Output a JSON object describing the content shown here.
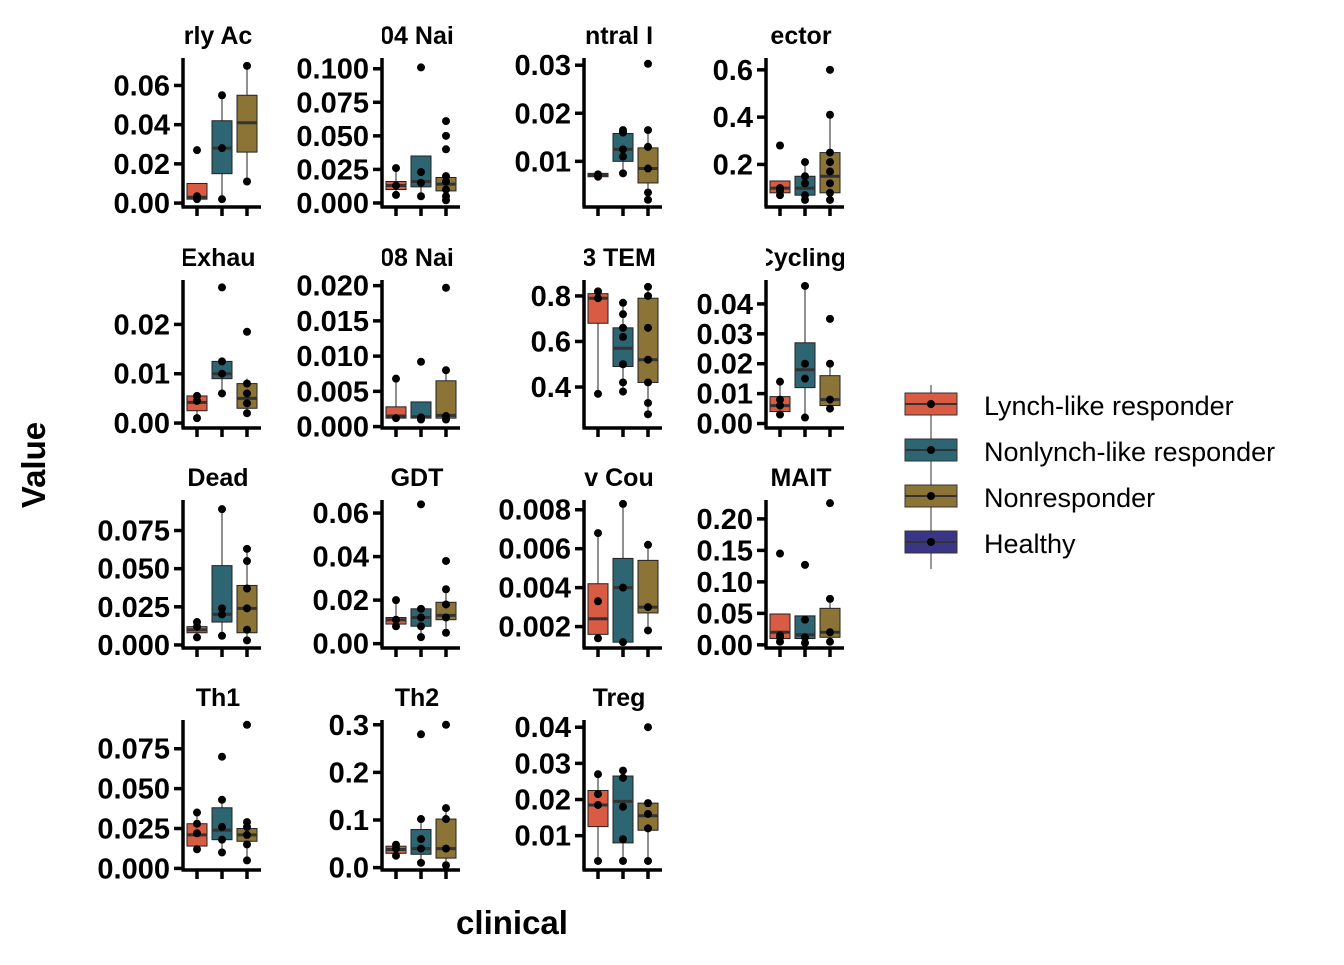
{
  "chart_data": {
    "type": "box",
    "xlabel": "clinical",
    "ylabel": "Value",
    "legend": {
      "position": "right",
      "entries": [
        {
          "name": "Lynch-like responder",
          "color": "#D95B43"
        },
        {
          "name": "Nonlynch-like responder",
          "color": "#2E6573"
        },
        {
          "name": "Nonresponder",
          "color": "#8C7436"
        },
        {
          "name": "Healthy",
          "color": "#3B3585"
        }
      ]
    },
    "panels": [
      {
        "title": "rly Ac",
        "ylim": [
          -0.002,
          0.074
        ],
        "ticks": [
          0.0,
          0.02,
          0.04,
          0.06
        ],
        "tick_labels": [
          "0.00",
          "0.02",
          "0.04",
          "0.06"
        ],
        "groups": [
          {
            "q1": 0.002,
            "median": 0.003,
            "q3": 0.01,
            "wlo": 0.001,
            "whi": 0.01,
            "points": [
              0.002,
              0.003,
              0.0035,
              0.027
            ]
          },
          {
            "q1": 0.015,
            "median": 0.028,
            "q3": 0.042,
            "wlo": 0.002,
            "whi": 0.055,
            "points": [
              0.002,
              0.028,
              0.055
            ]
          },
          {
            "q1": 0.026,
            "median": 0.041,
            "q3": 0.055,
            "wlo": 0.011,
            "whi": 0.07,
            "points": [
              0.011,
              0.07
            ]
          }
        ]
      },
      {
        "title": "04 Nai",
        "ylim": [
          -0.003,
          0.108
        ],
        "ticks": [
          0.0,
          0.025,
          0.05,
          0.075,
          0.1
        ],
        "tick_labels": [
          "0.000",
          "0.025",
          "0.050",
          "0.075",
          "0.100"
        ],
        "groups": [
          {
            "q1": 0.01,
            "median": 0.013,
            "q3": 0.016,
            "wlo": 0.006,
            "whi": 0.026,
            "points": [
              0.006,
              0.013,
              0.026
            ]
          },
          {
            "q1": 0.012,
            "median": 0.016,
            "q3": 0.035,
            "wlo": 0.005,
            "whi": 0.035,
            "points": [
              0.005,
              0.015,
              0.023,
              0.101
            ]
          },
          {
            "q1": 0.009,
            "median": 0.014,
            "q3": 0.019,
            "wlo": 0.002,
            "whi": 0.022,
            "points": [
              0.002,
              0.005,
              0.01,
              0.016,
              0.02,
              0.04,
              0.05,
              0.061
            ]
          }
        ]
      },
      {
        "title": "ntral I",
        "ylim": [
          0.0005,
          0.0315
        ],
        "ticks": [
          0.01,
          0.02,
          0.03
        ],
        "tick_labels": [
          "0.01",
          "0.02",
          "0.03"
        ],
        "groups": [
          {
            "q1": 0.0068,
            "median": 0.0072,
            "q3": 0.0075,
            "wlo": 0.0066,
            "whi": 0.0077,
            "points": [
              0.0068,
              0.0073
            ]
          },
          {
            "q1": 0.01,
            "median": 0.0125,
            "q3": 0.0158,
            "wlo": 0.0075,
            "whi": 0.017,
            "points": [
              0.0075,
              0.011,
              0.0125,
              0.016,
              0.0165
            ]
          },
          {
            "q1": 0.0055,
            "median": 0.0085,
            "q3": 0.0128,
            "wlo": 0.002,
            "whi": 0.017,
            "points": [
              0.002,
              0.0035,
              0.0085,
              0.013,
              0.0165,
              0.0303
            ]
          }
        ]
      },
      {
        "title": "ector",
        "ylim": [
          0.02,
          0.65
        ],
        "ticks": [
          0.2,
          0.4,
          0.6
        ],
        "tick_labels": [
          "0.2",
          "0.4",
          "0.6"
        ],
        "groups": [
          {
            "q1": 0.08,
            "median": 0.1,
            "q3": 0.13,
            "wlo": 0.07,
            "whi": 0.13,
            "points": [
              0.07,
              0.09,
              0.1,
              0.28
            ]
          },
          {
            "q1": 0.07,
            "median": 0.1,
            "q3": 0.15,
            "wlo": 0.05,
            "whi": 0.21,
            "points": [
              0.05,
              0.07,
              0.12,
              0.15,
              0.21
            ]
          },
          {
            "q1": 0.08,
            "median": 0.15,
            "q3": 0.25,
            "wlo": 0.05,
            "whi": 0.41,
            "points": [
              0.05,
              0.08,
              0.12,
              0.17,
              0.21,
              0.25,
              0.41,
              0.6
            ]
          }
        ]
      },
      {
        "title": "Exhau",
        "ylim": [
          -0.001,
          0.029
        ],
        "ticks": [
          0.0,
          0.01,
          0.02
        ],
        "tick_labels": [
          "0.00",
          "0.01",
          "0.02"
        ],
        "groups": [
          {
            "q1": 0.0025,
            "median": 0.0042,
            "q3": 0.0055,
            "wlo": 0.001,
            "whi": 0.006,
            "points": [
              0.001,
              0.0045,
              0.0055
            ]
          },
          {
            "q1": 0.009,
            "median": 0.01,
            "q3": 0.0125,
            "wlo": 0.006,
            "whi": 0.013,
            "points": [
              0.006,
              0.01,
              0.0125,
              0.0275
            ]
          },
          {
            "q1": 0.003,
            "median": 0.005,
            "q3": 0.008,
            "wlo": 0.002,
            "whi": 0.009,
            "points": [
              0.002,
              0.004,
              0.006,
              0.008,
              0.0185
            ]
          }
        ]
      },
      {
        "title": "08 Nai",
        "ylim": [
          -0.0002,
          0.0208
        ],
        "ticks": [
          0.0,
          0.005,
          0.01,
          0.015,
          0.02
        ],
        "tick_labels": [
          "0.000",
          "0.005",
          "0.010",
          "0.015",
          "0.020"
        ],
        "groups": [
          {
            "q1": 0.0012,
            "median": 0.0015,
            "q3": 0.0028,
            "wlo": 0.001,
            "whi": 0.0068,
            "points": [
              0.0012,
              0.0068
            ]
          },
          {
            "q1": 0.0012,
            "median": 0.0014,
            "q3": 0.0035,
            "wlo": 0.0008,
            "whi": 0.0035,
            "points": [
              0.001,
              0.0013,
              0.0092
            ]
          },
          {
            "q1": 0.0012,
            "median": 0.0016,
            "q3": 0.0065,
            "wlo": 0.0008,
            "whi": 0.008,
            "points": [
              0.001,
              0.0015,
              0.008,
              0.0197
            ]
          }
        ]
      },
      {
        "title": "3 TEM",
        "ylim": [
          0.22,
          0.87
        ],
        "ticks": [
          0.4,
          0.6,
          0.8
        ],
        "tick_labels": [
          "0.4",
          "0.6",
          "0.8"
        ],
        "groups": [
          {
            "q1": 0.68,
            "median": 0.79,
            "q3": 0.81,
            "wlo": 0.37,
            "whi": 0.82,
            "points": [
              0.37,
              0.79,
              0.82
            ]
          },
          {
            "q1": 0.49,
            "median": 0.57,
            "q3": 0.66,
            "wlo": 0.38,
            "whi": 0.77,
            "points": [
              0.38,
              0.42,
              0.5,
              0.62,
              0.66,
              0.72,
              0.77
            ]
          },
          {
            "q1": 0.42,
            "median": 0.52,
            "q3": 0.79,
            "wlo": 0.28,
            "whi": 0.84,
            "points": [
              0.28,
              0.33,
              0.42,
              0.52,
              0.66,
              0.8,
              0.84
            ]
          }
        ]
      },
      {
        "title": "Cycling",
        "ylim": [
          -0.0015,
          0.048
        ],
        "ticks": [
          0.0,
          0.01,
          0.02,
          0.03,
          0.04
        ],
        "tick_labels": [
          "0.00",
          "0.01",
          "0.02",
          "0.03",
          "0.04"
        ],
        "groups": [
          {
            "q1": 0.004,
            "median": 0.006,
            "q3": 0.009,
            "wlo": 0.003,
            "whi": 0.014,
            "points": [
              0.003,
              0.006,
              0.008,
              0.014
            ]
          },
          {
            "q1": 0.012,
            "median": 0.018,
            "q3": 0.027,
            "wlo": 0.002,
            "whi": 0.046,
            "points": [
              0.002,
              0.015,
              0.02,
              0.046
            ]
          },
          {
            "q1": 0.006,
            "median": 0.008,
            "q3": 0.016,
            "wlo": 0.005,
            "whi": 0.02,
            "points": [
              0.005,
              0.008,
              0.02,
              0.035
            ]
          }
        ]
      },
      {
        "title": "Dead",
        "ylim": [
          -0.002,
          0.095
        ],
        "ticks": [
          0.0,
          0.025,
          0.05,
          0.075
        ],
        "tick_labels": [
          "0.000",
          "0.025",
          "0.050",
          "0.075"
        ],
        "groups": [
          {
            "q1": 0.008,
            "median": 0.01,
            "q3": 0.012,
            "wlo": 0.005,
            "whi": 0.015,
            "points": [
              0.005,
              0.012,
              0.015
            ]
          },
          {
            "q1": 0.015,
            "median": 0.02,
            "q3": 0.052,
            "wlo": 0.006,
            "whi": 0.089,
            "points": [
              0.006,
              0.02,
              0.024,
              0.089
            ]
          },
          {
            "q1": 0.008,
            "median": 0.024,
            "q3": 0.039,
            "wlo": 0.003,
            "whi": 0.063,
            "points": [
              0.003,
              0.01,
              0.024,
              0.037,
              0.055,
              0.063
            ]
          }
        ]
      },
      {
        "title": "GDT",
        "ylim": [
          -0.002,
          0.066
        ],
        "ticks": [
          0.0,
          0.02,
          0.04,
          0.06
        ],
        "tick_labels": [
          "0.00",
          "0.02",
          "0.04",
          "0.06"
        ],
        "groups": [
          {
            "q1": 0.009,
            "median": 0.011,
            "q3": 0.012,
            "wlo": 0.008,
            "whi": 0.02,
            "points": [
              0.008,
              0.011,
              0.02
            ]
          },
          {
            "q1": 0.008,
            "median": 0.012,
            "q3": 0.016,
            "wlo": 0.003,
            "whi": 0.016,
            "points": [
              0.003,
              0.008,
              0.012,
              0.016,
              0.064
            ]
          },
          {
            "q1": 0.011,
            "median": 0.013,
            "q3": 0.019,
            "wlo": 0.005,
            "whi": 0.025,
            "points": [
              0.005,
              0.012,
              0.018,
              0.025,
              0.038
            ]
          }
        ]
      },
      {
        "title": "v Cou",
        "ylim": [
          0.0009,
          0.0085
        ],
        "ticks": [
          0.002,
          0.004,
          0.006,
          0.008
        ],
        "tick_labels": [
          "0.002",
          "0.004",
          "0.006",
          "0.008"
        ],
        "groups": [
          {
            "q1": 0.0016,
            "median": 0.0024,
            "q3": 0.0042,
            "wlo": 0.0014,
            "whi": 0.0068,
            "points": [
              0.0014,
              0.0033,
              0.0068
            ]
          },
          {
            "q1": 0.0012,
            "median": 0.004,
            "q3": 0.0055,
            "wlo": 0.0012,
            "whi": 0.0083,
            "points": [
              0.0012,
              0.004,
              0.0083
            ]
          },
          {
            "q1": 0.0027,
            "median": 0.003,
            "q3": 0.0054,
            "wlo": 0.0018,
            "whi": 0.0062,
            "points": [
              0.0018,
              0.003,
              0.0062
            ]
          }
        ]
      },
      {
        "title": "MAIT",
        "ylim": [
          -0.005,
          0.23
        ],
        "ticks": [
          0.0,
          0.05,
          0.1,
          0.15,
          0.2
        ],
        "tick_labels": [
          "0.00",
          "0.05",
          "0.10",
          "0.15",
          "0.20"
        ],
        "groups": [
          {
            "q1": 0.01,
            "median": 0.02,
            "q3": 0.049,
            "wlo": 0.005,
            "whi": 0.049,
            "points": [
              0.005,
              0.012,
              0.015,
              0.145
            ]
          },
          {
            "q1": 0.01,
            "median": 0.016,
            "q3": 0.046,
            "wlo": 0.003,
            "whi": 0.046,
            "points": [
              0.003,
              0.012,
              0.04,
              0.127
            ]
          },
          {
            "q1": 0.012,
            "median": 0.02,
            "q3": 0.058,
            "wlo": 0.005,
            "whi": 0.073,
            "points": [
              0.005,
              0.02,
              0.073,
              0.225
            ]
          }
        ]
      },
      {
        "title": "Th1",
        "ylim": [
          -0.001,
          0.093
        ],
        "ticks": [
          0.0,
          0.025,
          0.05,
          0.075
        ],
        "tick_labels": [
          "0.000",
          "0.025",
          "0.050",
          "0.075"
        ],
        "groups": [
          {
            "q1": 0.014,
            "median": 0.021,
            "q3": 0.028,
            "wlo": 0.012,
            "whi": 0.035,
            "points": [
              0.012,
              0.022,
              0.028,
              0.035
            ]
          },
          {
            "q1": 0.018,
            "median": 0.024,
            "q3": 0.038,
            "wlo": 0.01,
            "whi": 0.043,
            "points": [
              0.01,
              0.018,
              0.026,
              0.043,
              0.07
            ]
          },
          {
            "q1": 0.017,
            "median": 0.021,
            "q3": 0.025,
            "wlo": 0.005,
            "whi": 0.029,
            "points": [
              0.005,
              0.015,
              0.021,
              0.026,
              0.029,
              0.09
            ]
          }
        ]
      },
      {
        "title": "Th2",
        "ylim": [
          -0.005,
          0.31
        ],
        "ticks": [
          0.0,
          0.1,
          0.2,
          0.3
        ],
        "tick_labels": [
          "0.0",
          "0.1",
          "0.2",
          "0.3"
        ],
        "groups": [
          {
            "q1": 0.03,
            "median": 0.038,
            "q3": 0.045,
            "wlo": 0.025,
            "whi": 0.048,
            "points": [
              0.025,
              0.04,
              0.048
            ]
          },
          {
            "q1": 0.028,
            "median": 0.04,
            "q3": 0.08,
            "wlo": 0.01,
            "whi": 0.102,
            "points": [
              0.01,
              0.04,
              0.06,
              0.102,
              0.28
            ]
          },
          {
            "q1": 0.02,
            "median": 0.04,
            "q3": 0.102,
            "wlo": 0.005,
            "whi": 0.125,
            "points": [
              0.005,
              0.04,
              0.102,
              0.125,
              0.3
            ]
          }
        ]
      },
      {
        "title": "Treg",
        "ylim": [
          0.0005,
          0.042
        ],
        "ticks": [
          0.01,
          0.02,
          0.03,
          0.04
        ],
        "tick_labels": [
          "0.01",
          "0.02",
          "0.03",
          "0.04"
        ],
        "groups": [
          {
            "q1": 0.0125,
            "median": 0.0185,
            "q3": 0.0225,
            "wlo": 0.003,
            "whi": 0.027,
            "points": [
              0.003,
              0.0185,
              0.0215,
              0.027
            ]
          },
          {
            "q1": 0.008,
            "median": 0.0195,
            "q3": 0.0265,
            "wlo": 0.003,
            "whi": 0.028,
            "points": [
              0.003,
              0.009,
              0.018,
              0.026,
              0.028
            ]
          },
          {
            "q1": 0.0115,
            "median": 0.0155,
            "q3": 0.019,
            "wlo": 0.003,
            "whi": 0.0195,
            "points": [
              0.003,
              0.012,
              0.016,
              0.019,
              0.04
            ]
          }
        ]
      }
    ]
  }
}
